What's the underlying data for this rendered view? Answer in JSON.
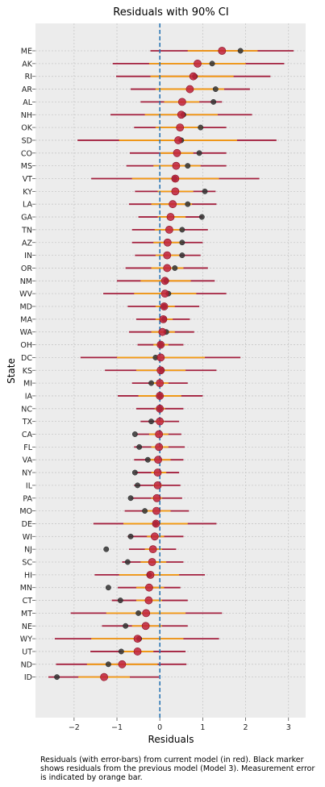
{
  "chart_data": {
    "type": "scatter",
    "title": "Residuals with 90% CI",
    "xlabel": "Residuals",
    "ylabel": "State",
    "xlim": [
      -2.9,
      3.4
    ],
    "xticks": [
      -2,
      -1,
      0,
      1,
      2,
      3
    ],
    "grid": true,
    "reference_line_x": 0,
    "caption": "Residuals (with error-bars) from current model (in red). Black marker shows residuals from the previous model (Model 3). Measurement error is indicated by orange bar.",
    "colors": {
      "current": "#c0203a",
      "ci": "#a3203e",
      "measurement_error": "#f39c12",
      "previous": "#333333",
      "zero_line": "#1f6fb2",
      "panel": "#ececec",
      "grid": "#c8c8c8"
    },
    "states": [
      "ME",
      "AK",
      "RI",
      "AR",
      "AL",
      "NH",
      "OK",
      "SD",
      "CO",
      "MS",
      "VT",
      "KY",
      "LA",
      "GA",
      "TN",
      "AZ",
      "IN",
      "OR",
      "NM",
      "WV",
      "MD",
      "MA",
      "WA",
      "OH",
      "DC",
      "KS",
      "MI",
      "IA",
      "NC",
      "TX",
      "CA",
      "FL",
      "VA",
      "NY",
      "IL",
      "PA",
      "MO",
      "DE",
      "WI",
      "NJ",
      "SC",
      "HI",
      "MN",
      "CT",
      "MT",
      "NE",
      "WY",
      "UT",
      "ND",
      "ID"
    ],
    "residual": [
      1.45,
      0.88,
      0.78,
      0.7,
      0.52,
      0.5,
      0.47,
      0.43,
      0.4,
      0.38,
      0.36,
      0.36,
      0.3,
      0.25,
      0.22,
      0.18,
      0.17,
      0.17,
      0.12,
      0.12,
      0.1,
      0.08,
      0.06,
      0.02,
      0.02,
      0.02,
      0.0,
      0.0,
      0.0,
      0.0,
      -0.02,
      -0.02,
      -0.04,
      -0.05,
      -0.05,
      -0.07,
      -0.08,
      -0.09,
      -0.12,
      -0.16,
      -0.18,
      -0.22,
      -0.25,
      -0.26,
      -0.32,
      -0.33,
      -0.52,
      -0.52,
      -0.88,
      -1.3
    ],
    "ci_low": [
      -0.22,
      -1.1,
      -1.02,
      -0.68,
      -0.45,
      -1.15,
      -0.6,
      -1.92,
      -0.7,
      -0.78,
      -1.6,
      -0.58,
      -0.72,
      -0.5,
      -0.65,
      -0.65,
      -0.58,
      -0.8,
      -1.0,
      -1.32,
      -0.75,
      -0.55,
      -0.72,
      -0.52,
      -1.85,
      -1.28,
      -0.65,
      -0.98,
      -0.55,
      -0.45,
      -0.55,
      -0.6,
      -0.6,
      -0.58,
      -0.6,
      -0.68,
      -0.82,
      -1.55,
      -0.75,
      -0.72,
      -0.88,
      -1.52,
      -0.98,
      -1.12,
      -2.08,
      -1.35,
      -2.45,
      -1.62,
      -2.42,
      -2.6
    ],
    "ci_high": [
      3.12,
      2.9,
      2.58,
      2.1,
      1.45,
      2.15,
      1.55,
      2.72,
      1.55,
      1.55,
      2.32,
      1.3,
      1.32,
      1.0,
      1.12,
      1.0,
      0.95,
      1.12,
      1.28,
      1.55,
      0.92,
      0.7,
      0.8,
      0.55,
      1.88,
      1.32,
      0.65,
      1.0,
      0.55,
      0.45,
      0.5,
      0.58,
      0.55,
      0.45,
      0.48,
      0.52,
      0.68,
      1.32,
      0.55,
      0.38,
      0.55,
      1.05,
      0.48,
      0.65,
      1.45,
      0.65,
      1.38,
      0.6,
      0.62,
      -0.02
    ],
    "me_low": [
      0.65,
      -0.25,
      -0.22,
      -0.1,
      0.1,
      -0.35,
      -0.1,
      -0.95,
      0.0,
      -0.15,
      -0.65,
      -0.05,
      -0.2,
      -0.05,
      -0.12,
      -0.15,
      -0.1,
      -0.2,
      -0.45,
      -0.6,
      -0.1,
      -0.1,
      -0.2,
      -0.15,
      -1.0,
      -0.55,
      -0.2,
      -0.5,
      -0.12,
      -0.1,
      -0.25,
      -0.2,
      -0.25,
      -0.2,
      -0.15,
      -0.2,
      -0.4,
      -0.85,
      -0.3,
      -0.35,
      -0.45,
      -0.95,
      -0.55,
      -0.55,
      -1.25,
      -0.65,
      -1.6,
      -0.9,
      -1.7,
      -1.9
    ],
    "me_high": [
      2.28,
      2.0,
      1.72,
      1.5,
      0.92,
      1.35,
      1.0,
      1.8,
      0.78,
      0.95,
      1.38,
      0.78,
      0.75,
      0.6,
      0.55,
      0.52,
      0.45,
      0.55,
      0.72,
      0.85,
      0.35,
      0.3,
      0.35,
      0.2,
      1.05,
      0.6,
      0.2,
      0.5,
      0.12,
      0.1,
      0.2,
      0.2,
      0.25,
      0.15,
      0.05,
      0.05,
      0.25,
      0.65,
      0.1,
      0.05,
      0.15,
      0.45,
      0.1,
      0.05,
      0.6,
      0.05,
      0.55,
      -0.15,
      -0.05,
      -0.7
    ],
    "previous": [
      1.88,
      1.22,
      0.82,
      1.3,
      1.25,
      0.55,
      0.95,
      0.5,
      0.92,
      0.65,
      0.35,
      1.05,
      0.65,
      0.98,
      0.52,
      0.52,
      0.52,
      0.35,
      0.15,
      0.2,
      0.1,
      0.1,
      0.15,
      0.02,
      -0.1,
      0.05,
      -0.2,
      0.0,
      0.0,
      -0.2,
      -0.58,
      -0.48,
      -0.28,
      -0.58,
      -0.52,
      -0.68,
      -0.35,
      -0.1,
      -0.68,
      -1.25,
      -0.75,
      -0.25,
      -1.2,
      -0.92,
      -0.5,
      -0.8,
      -0.48,
      -0.9,
      -1.2,
      -2.4
    ]
  }
}
